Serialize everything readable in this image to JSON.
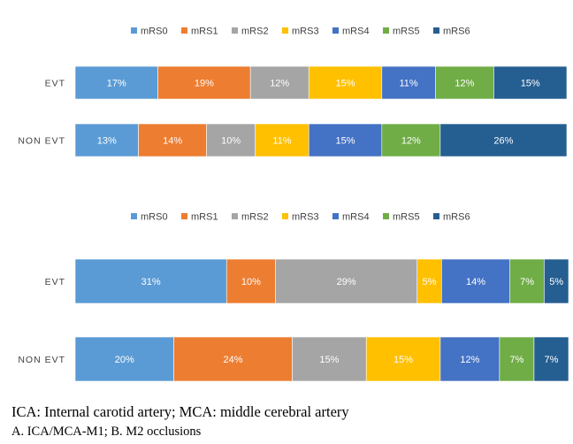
{
  "colors": {
    "mRS0": "#5b9bd5",
    "mRS1": "#ed7d31",
    "mRS2": "#a5a5a5",
    "mRS3": "#ffc000",
    "mRS4": "#4472c4",
    "mRS5": "#70ad47",
    "mRS6": "#255e91"
  },
  "chart_data": [
    {
      "type": "bar",
      "orientation": "horizontal",
      "stacked": "percent",
      "title": "",
      "legend_position": "top",
      "legend": [
        "mRS0",
        "mRS1",
        "mRS2",
        "mRS3",
        "mRS4",
        "mRS5",
        "mRS6"
      ],
      "categories": [
        "EVT",
        "NON EVT"
      ],
      "series": [
        {
          "name": "mRS0",
          "values": [
            17,
            13
          ],
          "labels": [
            "17%",
            "13%"
          ]
        },
        {
          "name": "mRS1",
          "values": [
            19,
            14
          ],
          "labels": [
            "19%",
            "14%"
          ]
        },
        {
          "name": "mRS2",
          "values": [
            12,
            10
          ],
          "labels": [
            "12%",
            "10%"
          ]
        },
        {
          "name": "mRS3",
          "values": [
            15,
            11
          ],
          "labels": [
            "15%",
            "11%"
          ]
        },
        {
          "name": "mRS4",
          "values": [
            11,
            15
          ],
          "labels": [
            "11%",
            "15%"
          ]
        },
        {
          "name": "mRS5",
          "values": [
            12,
            12
          ],
          "labels": [
            "12%",
            "12%"
          ]
        },
        {
          "name": "mRS6",
          "values": [
            15,
            26
          ],
          "labels": [
            "15%",
            "26%"
          ]
        }
      ]
    },
    {
      "type": "bar",
      "orientation": "horizontal",
      "stacked": "percent",
      "title": "",
      "legend_position": "top",
      "legend": [
        "mRS0",
        "mRS1",
        "mRS2",
        "mRS3",
        "mRS4",
        "mRS5",
        "mRS6"
      ],
      "categories": [
        "EVT",
        "NON EVT"
      ],
      "series": [
        {
          "name": "mRS0",
          "values": [
            31,
            20
          ],
          "labels": [
            "31%",
            "20%"
          ]
        },
        {
          "name": "mRS1",
          "values": [
            10,
            24
          ],
          "labels": [
            "10%",
            "24%"
          ]
        },
        {
          "name": "mRS2",
          "values": [
            29,
            15
          ],
          "labels": [
            "29%",
            "15%"
          ]
        },
        {
          "name": "mRS3",
          "values": [
            5,
            15
          ],
          "labels": [
            "5%",
            "15%"
          ]
        },
        {
          "name": "mRS4",
          "values": [
            14,
            12
          ],
          "labels": [
            "14%",
            "12%"
          ]
        },
        {
          "name": "mRS5",
          "values": [
            7,
            7
          ],
          "labels": [
            "7%",
            "7%"
          ]
        },
        {
          "name": "mRS6",
          "values": [
            5,
            7
          ],
          "labels": [
            "5%",
            "7%"
          ]
        }
      ]
    }
  ],
  "captions": {
    "line1": "ICA: Internal carotid artery; MCA: middle cerebral artery",
    "line2": "A. ICA/MCA-M1; B. M2 occlusions"
  }
}
